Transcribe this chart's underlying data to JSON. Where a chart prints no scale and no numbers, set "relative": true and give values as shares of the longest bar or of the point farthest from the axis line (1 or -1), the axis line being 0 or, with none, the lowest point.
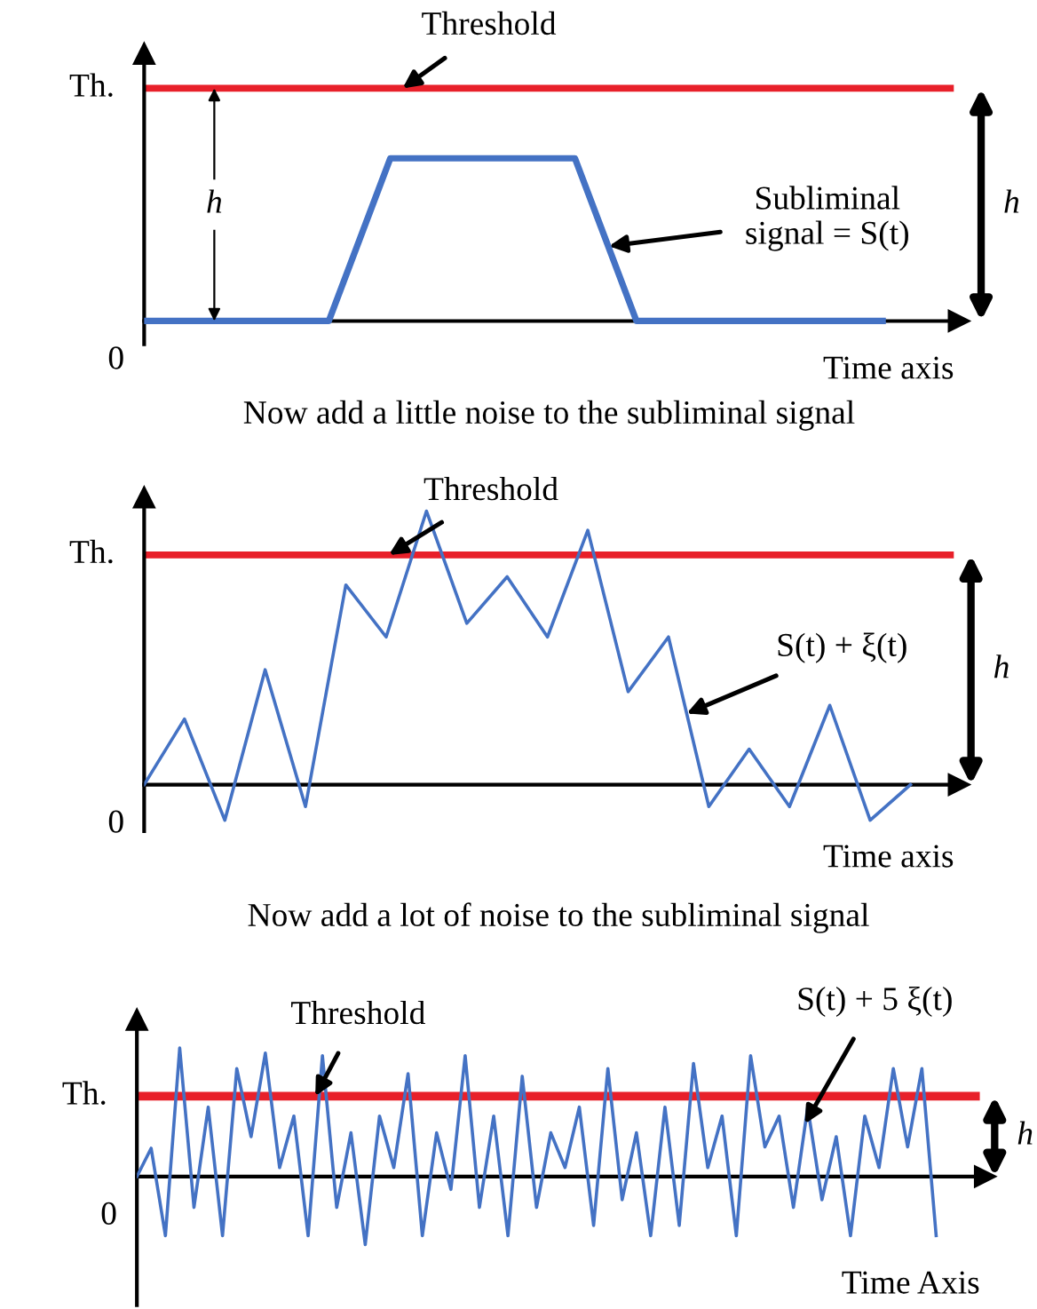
{
  "chart_data": [
    {
      "type": "line",
      "xlabel": "Time axis",
      "relative": true,
      "grid": false,
      "line_style": "solid",
      "categories": [
        null,
        null,
        null,
        null,
        null,
        null,
        null,
        null,
        null,
        null,
        null,
        null,
        null
      ],
      "series": [
        {
          "color": "#4472c4",
          "values": [
            0,
            0,
            0,
            0,
            1,
            1,
            1,
            1,
            0,
            0,
            0,
            0,
            0
          ]
        }
      ],
      "ref_lines": [
        {
          "axis": "y",
          "value": 1.43,
          "label": "Th.",
          "color": "#e8202a"
        }
      ],
      "annotations": [
        {
          "text": "Threshold",
          "y": 1.43
        },
        "Subliminal\nsignal = S(t)",
        "h",
        "h",
        "0"
      ]
    },
    {
      "type": "line",
      "title": "Now add a little noise to the subliminal signal",
      "xlabel": "Time axis",
      "relative": true,
      "grid": false,
      "line_style": "solid",
      "categories": [
        null,
        null,
        null,
        null,
        null,
        null,
        null,
        null,
        null,
        null,
        null,
        null,
        null,
        null,
        null,
        null,
        null,
        null,
        null,
        null
      ],
      "series": [
        {
          "color": "#4472c4",
          "values": [
            0,
            0.24,
            -0.13,
            0.42,
            -0.08,
            0.73,
            0.54,
            1,
            0.59,
            0.76,
            0.54,
            0.93,
            0.34,
            0.54,
            -0.08,
            0.13,
            -0.08,
            0.29,
            -0.13,
            0
          ]
        }
      ],
      "ref_lines": [
        {
          "axis": "y",
          "value": 0.84,
          "label": "Th.",
          "color": "#e8202a"
        }
      ],
      "annotations": [
        {
          "text": "Threshold",
          "y": 0.84
        },
        "S(t) + ξ(t)",
        "h",
        "0"
      ]
    },
    {
      "type": "line",
      "title": "Now add a lot of noise to the subliminal signal",
      "xlabel": "Time Axis",
      "relative": true,
      "grid": false,
      "line_style": "solid",
      "categories": [
        null,
        null,
        null,
        null,
        null,
        null,
        null,
        null,
        null,
        null,
        null,
        null,
        null,
        null,
        null,
        null,
        null,
        null,
        null,
        null,
        null,
        null,
        null,
        null,
        null,
        null,
        null,
        null,
        null,
        null,
        null,
        null,
        null,
        null,
        null,
        null,
        null,
        null,
        null,
        null,
        null,
        null,
        null,
        null,
        null,
        null,
        null,
        null,
        null,
        null,
        null,
        null,
        null,
        null,
        null,
        null,
        null
      ],
      "series": [
        {
          "color": "#4472c4",
          "values": [
            0,
            0.22,
            -0.46,
            1,
            -0.24,
            0.54,
            -0.46,
            0.84,
            0.31,
            0.96,
            0.07,
            0.47,
            -0.46,
            0.94,
            -0.24,
            0.34,
            -0.53,
            0.47,
            0.07,
            0.8,
            -0.46,
            0.34,
            -0.1,
            0.94,
            -0.24,
            0.47,
            -0.46,
            0.78,
            -0.24,
            0.34,
            0.07,
            0.54,
            -0.38,
            0.84,
            -0.18,
            0.34,
            -0.46,
            0.54,
            -0.38,
            0.88,
            0.07,
            0.47,
            -0.46,
            0.94,
            0.23,
            0.47,
            -0.24,
            0.54,
            -0.18,
            0.31,
            -0.46,
            0.47,
            0.07,
            0.84,
            0.23,
            0.84,
            -0.46
          ]
        }
      ],
      "ref_lines": [
        {
          "axis": "y",
          "value": 0.625,
          "label": "Th.",
          "color": "#e8202a"
        }
      ],
      "annotations": [
        {
          "text": "Threshold",
          "y": 0.625
        },
        "S(t) + 5 ξ(t)",
        "h",
        "0"
      ]
    }
  ]
}
